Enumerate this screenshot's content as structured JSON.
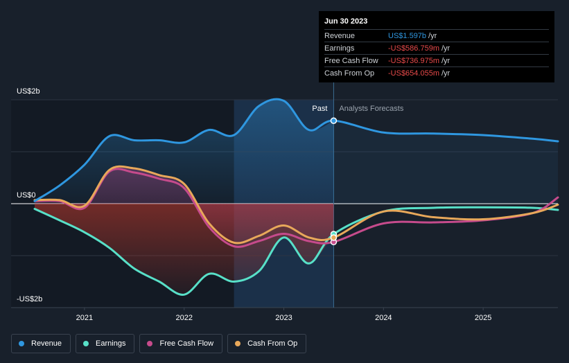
{
  "chart_data": {
    "type": "line",
    "x_ticks": [
      "2021",
      "2022",
      "2023",
      "2024",
      "2025"
    ],
    "y_ticks": [
      "US$2b",
      "US$0",
      "-US$2b"
    ],
    "ylim": [
      -2,
      2
    ],
    "units": "US$ billions",
    "divider_label_past": "Past",
    "divider_label_forecast": "Analysts Forecasts",
    "divider_date": "2023.5",
    "highlight_range": [
      "2022.5",
      "2023.5"
    ],
    "series": [
      {
        "name": "Revenue",
        "color": "#2f97e0",
        "x": [
          2020.5,
          2020.75,
          2021.0,
          2021.25,
          2021.5,
          2021.75,
          2022.0,
          2022.25,
          2022.5,
          2022.75,
          2023.0,
          2023.25,
          2023.5,
          2024.0,
          2024.5,
          2025.0,
          2025.5,
          2025.75
        ],
        "values": [
          0.05,
          0.35,
          0.75,
          1.3,
          1.22,
          1.22,
          1.18,
          1.42,
          1.32,
          1.88,
          1.98,
          1.42,
          1.597,
          1.37,
          1.35,
          1.32,
          1.25,
          1.2
        ]
      },
      {
        "name": "Earnings",
        "color": "#58e0c8",
        "x": [
          2020.5,
          2020.75,
          2021.0,
          2021.25,
          2021.5,
          2021.75,
          2022.0,
          2022.25,
          2022.5,
          2022.75,
          2023.0,
          2023.25,
          2023.5,
          2024.0,
          2024.5,
          2025.0,
          2025.5,
          2025.75
        ],
        "values": [
          -0.1,
          -0.32,
          -0.55,
          -0.85,
          -1.25,
          -1.5,
          -1.75,
          -1.35,
          -1.5,
          -1.3,
          -0.65,
          -1.15,
          -0.587,
          -0.15,
          -0.08,
          -0.07,
          -0.08,
          -0.12
        ]
      },
      {
        "name": "Free Cash Flow",
        "color": "#c64b8c",
        "x": [
          2020.5,
          2020.75,
          2021.0,
          2021.25,
          2021.5,
          2021.75,
          2022.0,
          2022.25,
          2022.5,
          2022.75,
          2023.0,
          2023.25,
          2023.5,
          2024.0,
          2024.5,
          2025.0,
          2025.5,
          2025.75
        ],
        "values": [
          0.05,
          0.05,
          -0.08,
          0.62,
          0.6,
          0.48,
          0.3,
          -0.45,
          -0.82,
          -0.72,
          -0.58,
          -0.72,
          -0.737,
          -0.38,
          -0.36,
          -0.32,
          -0.18,
          0.12
        ]
      },
      {
        "name": "Cash From Op",
        "color": "#e8a85a",
        "x": [
          2020.5,
          2020.75,
          2021.0,
          2021.25,
          2021.5,
          2021.75,
          2022.0,
          2022.25,
          2022.5,
          2022.75,
          2023.0,
          2023.25,
          2023.5,
          2024.0,
          2024.5,
          2025.0,
          2025.5,
          2025.75
        ],
        "values": [
          0.07,
          0.07,
          -0.04,
          0.65,
          0.68,
          0.55,
          0.38,
          -0.38,
          -0.75,
          -0.62,
          -0.42,
          -0.65,
          -0.654,
          -0.15,
          -0.26,
          -0.3,
          -0.18,
          -0.02
        ]
      }
    ]
  },
  "tooltip": {
    "date": "Jun 30 2023",
    "rows": [
      {
        "name": "Revenue",
        "value": "US$1.597b",
        "unit": "/yr",
        "color": "#2f97e0"
      },
      {
        "name": "Earnings",
        "value": "-US$586.759m",
        "unit": "/yr",
        "color": "#e84a4a"
      },
      {
        "name": "Free Cash Flow",
        "value": "-US$736.975m",
        "unit": "/yr",
        "color": "#e84a4a"
      },
      {
        "name": "Cash From Op",
        "value": "-US$654.055m",
        "unit": "/yr",
        "color": "#e84a4a"
      }
    ]
  },
  "legend": [
    {
      "label": "Revenue",
      "color": "#2f97e0"
    },
    {
      "label": "Earnings",
      "color": "#58e0c8"
    },
    {
      "label": "Free Cash Flow",
      "color": "#c64b8c"
    },
    {
      "label": "Cash From Op",
      "color": "#e8a85a"
    }
  ]
}
